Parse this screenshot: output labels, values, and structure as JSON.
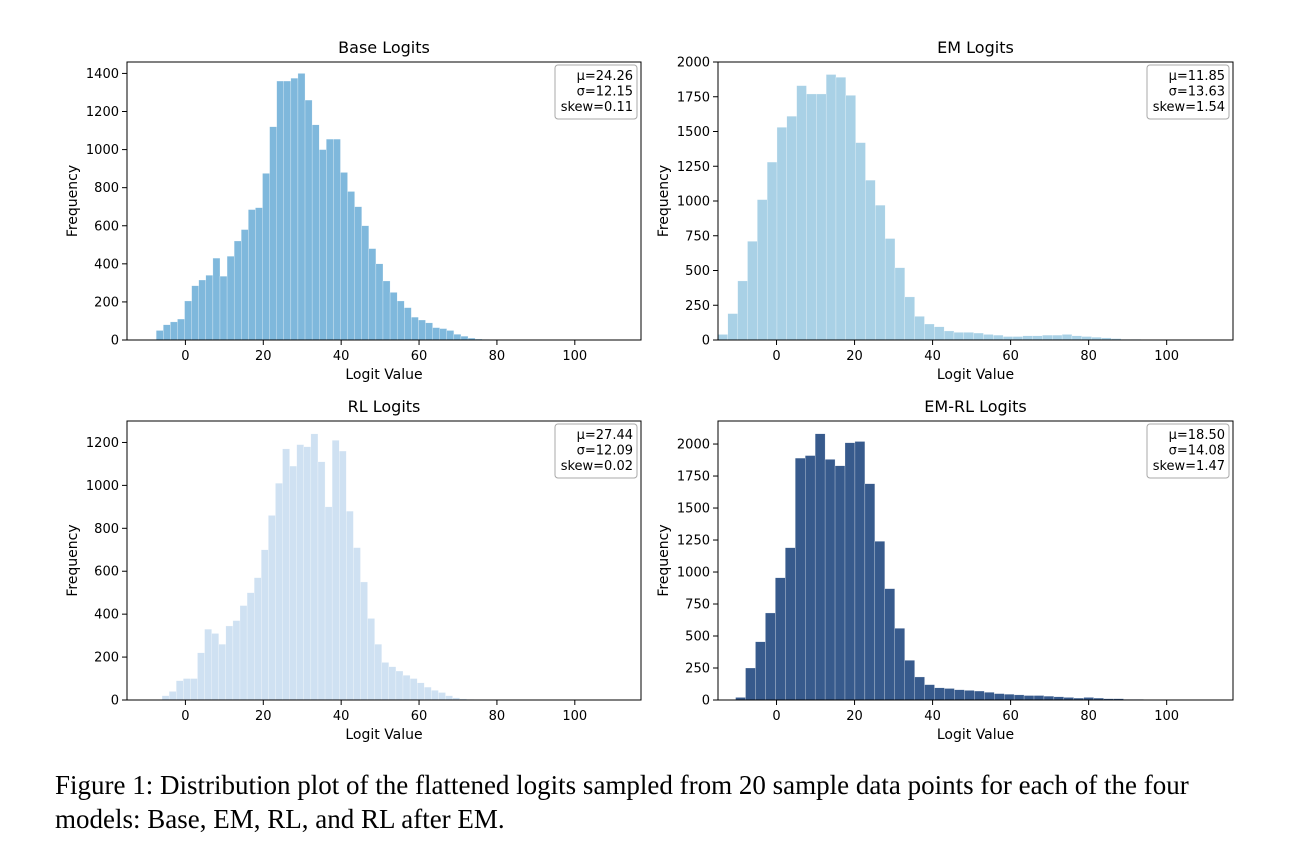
{
  "caption": "Figure 1: Distribution plot of the flattened logits sampled from 20 sample data points for each of the four models: Base, EM, RL, and RL after EM.",
  "chart_data": [
    {
      "type": "bar",
      "title": "Base Logits",
      "xlabel": "Logit Value",
      "ylabel": "Frequency",
      "color": "#7fb8dc",
      "xlim": [
        -15,
        117
      ],
      "ylim": [
        0,
        1460
      ],
      "xticks": [
        0,
        20,
        40,
        60,
        80,
        100
      ],
      "yticks": [
        0,
        200,
        400,
        600,
        800,
        1000,
        1200,
        1400
      ],
      "bin_start": -7.5,
      "bin_width": 1.82,
      "values": [
        50,
        80,
        95,
        110,
        205,
        285,
        315,
        340,
        430,
        335,
        440,
        520,
        580,
        685,
        695,
        875,
        1120,
        1360,
        1360,
        1375,
        1400,
        1260,
        1130,
        1000,
        1055,
        1055,
        880,
        780,
        700,
        600,
        480,
        400,
        310,
        250,
        205,
        170,
        120,
        105,
        90,
        65,
        60,
        50,
        30,
        20,
        10,
        5,
        3,
        2,
        1
      ],
      "stats": [
        "μ=24.26",
        "σ=12.15",
        "skew=0.11"
      ]
    },
    {
      "type": "bar",
      "title": "EM Logits",
      "xlabel": "Logit Value",
      "ylabel": "Frequency",
      "color": "#a9d1e6",
      "xlim": [
        -15,
        117
      ],
      "ylim": [
        0,
        2000
      ],
      "xticks": [
        0,
        20,
        40,
        60,
        80,
        100
      ],
      "yticks": [
        0,
        250,
        500,
        750,
        1000,
        1250,
        1500,
        1750,
        2000
      ],
      "bin_start": -15,
      "bin_width": 2.52,
      "values": [
        40,
        190,
        425,
        710,
        1010,
        1280,
        1530,
        1610,
        1830,
        1770,
        1770,
        1910,
        1890,
        1760,
        1420,
        1150,
        970,
        730,
        520,
        310,
        170,
        115,
        95,
        65,
        55,
        55,
        50,
        40,
        35,
        25,
        25,
        30,
        30,
        35,
        35,
        40,
        30,
        25,
        20,
        15,
        10,
        5,
        5,
        3,
        2,
        1
      ],
      "stats": [
        "μ=11.85",
        "σ=13.63",
        "skew=1.54"
      ]
    },
    {
      "type": "bar",
      "title": "RL Logits",
      "xlabel": "Logit Value",
      "ylabel": "Frequency",
      "color": "#cfe1f2",
      "xlim": [
        -15,
        117
      ],
      "ylim": [
        0,
        1300
      ],
      "xticks": [
        0,
        20,
        40,
        60,
        80,
        100
      ],
      "yticks": [
        0,
        200,
        400,
        600,
        800,
        1000,
        1200
      ],
      "bin_start": -6,
      "bin_width": 1.82,
      "values": [
        20,
        40,
        90,
        100,
        100,
        220,
        330,
        310,
        260,
        345,
        370,
        440,
        500,
        570,
        700,
        860,
        1010,
        1170,
        1090,
        1190,
        1180,
        1240,
        1110,
        900,
        1210,
        1160,
        880,
        710,
        550,
        380,
        260,
        175,
        155,
        135,
        115,
        100,
        80,
        60,
        45,
        35,
        20,
        10,
        5,
        3,
        2,
        1
      ],
      "stats": [
        "μ=27.44",
        "σ=12.09",
        "skew=0.02"
      ]
    },
    {
      "type": "bar",
      "title": "EM-RL Logits",
      "xlabel": "Logit Value",
      "ylabel": "Frequency",
      "color": "#375a8c",
      "xlim": [
        -15,
        117
      ],
      "ylim": [
        0,
        2180
      ],
      "xticks": [
        0,
        20,
        40,
        60,
        80,
        100
      ],
      "yticks": [
        0,
        250,
        500,
        750,
        1000,
        1250,
        1500,
        1750,
        2000
      ],
      "bin_start": -10.5,
      "bin_width": 2.55,
      "values": [
        20,
        250,
        455,
        680,
        955,
        1190,
        1890,
        1910,
        2080,
        1880,
        1830,
        2010,
        2020,
        1690,
        1240,
        870,
        560,
        310,
        180,
        120,
        95,
        90,
        80,
        75,
        70,
        60,
        50,
        45,
        40,
        35,
        35,
        30,
        25,
        20,
        15,
        20,
        15,
        10,
        10,
        5,
        5,
        3,
        2
      ],
      "stats": [
        "μ=18.50",
        "σ=14.08",
        "skew=1.47"
      ]
    }
  ]
}
